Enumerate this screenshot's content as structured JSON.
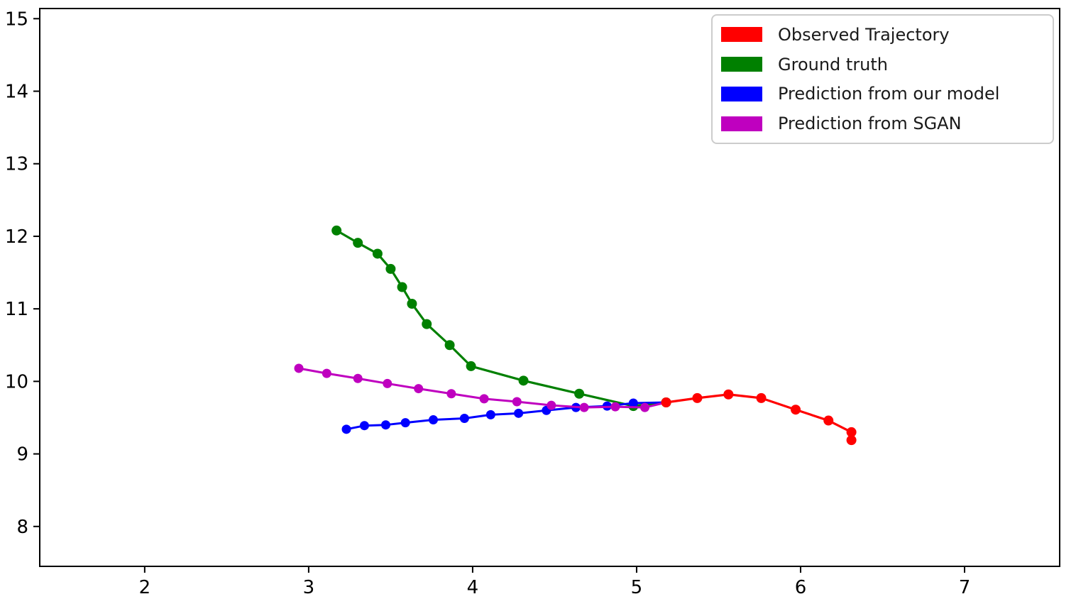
{
  "chart_data": {
    "type": "line",
    "title": "",
    "xlabel": "",
    "ylabel": "",
    "axes": {
      "xlim": [
        1.36,
        7.58
      ],
      "ylim": [
        7.45,
        15.14
      ],
      "xticks": [
        "2",
        "3",
        "4",
        "5",
        "6",
        "7"
      ],
      "xtick_values": [
        2,
        3,
        4,
        5,
        6,
        7
      ],
      "yticks": [
        "8",
        "9",
        "10",
        "11",
        "12",
        "13",
        "14",
        "15"
      ],
      "ytick_values": [
        8,
        9,
        10,
        11,
        12,
        13,
        14,
        15
      ],
      "grid": false,
      "spine_color": "#000000",
      "background": "#ffffff"
    },
    "legend": {
      "position": "upper right",
      "border_color": "#cccccc",
      "background": "#ffffff"
    },
    "series": [
      {
        "name": "Observed Trajectory",
        "color": "#ff0000",
        "marker": "o",
        "marker_radius": 7,
        "line_width": 3.2,
        "points": [
          [
            5.18,
            9.71
          ],
          [
            5.37,
            9.77
          ],
          [
            5.56,
            9.82
          ],
          [
            5.76,
            9.77
          ],
          [
            5.97,
            9.61
          ],
          [
            6.17,
            9.46
          ],
          [
            6.31,
            9.3
          ],
          [
            6.31,
            9.19
          ]
        ]
      },
      {
        "name": "Ground truth",
        "color": "#008000",
        "marker": "o",
        "marker_radius": 7,
        "line_width": 3.2,
        "points": [
          [
            3.17,
            12.08
          ],
          [
            3.3,
            11.91
          ],
          [
            3.42,
            11.76
          ],
          [
            3.5,
            11.55
          ],
          [
            3.57,
            11.3
          ],
          [
            3.63,
            11.07
          ],
          [
            3.72,
            10.79
          ],
          [
            3.86,
            10.5
          ],
          [
            3.99,
            10.21
          ],
          [
            4.31,
            10.01
          ],
          [
            4.65,
            9.83
          ],
          [
            4.98,
            9.66
          ],
          [
            5.18,
            9.71
          ]
        ]
      },
      {
        "name": "Prediction from our model",
        "color": "#0000ff",
        "marker": "o",
        "marker_radius": 6.5,
        "line_width": 3,
        "points": [
          [
            3.23,
            9.34
          ],
          [
            3.34,
            9.39
          ],
          [
            3.47,
            9.4
          ],
          [
            3.59,
            9.43
          ],
          [
            3.76,
            9.47
          ],
          [
            3.95,
            9.49
          ],
          [
            4.11,
            9.54
          ],
          [
            4.28,
            9.56
          ],
          [
            4.45,
            9.6
          ],
          [
            4.63,
            9.64
          ],
          [
            4.82,
            9.66
          ],
          [
            4.98,
            9.7
          ],
          [
            5.18,
            9.71
          ]
        ]
      },
      {
        "name": "Prediction from SGAN",
        "color": "#bf00bf",
        "marker": "o",
        "marker_radius": 6.5,
        "line_width": 3,
        "points": [
          [
            2.94,
            10.18
          ],
          [
            3.11,
            10.11
          ],
          [
            3.3,
            10.04
          ],
          [
            3.48,
            9.97
          ],
          [
            3.67,
            9.9
          ],
          [
            3.87,
            9.83
          ],
          [
            4.07,
            9.76
          ],
          [
            4.27,
            9.72
          ],
          [
            4.48,
            9.67
          ],
          [
            4.68,
            9.64
          ],
          [
            4.87,
            9.65
          ],
          [
            5.05,
            9.64
          ],
          [
            5.18,
            9.71
          ]
        ]
      }
    ]
  }
}
